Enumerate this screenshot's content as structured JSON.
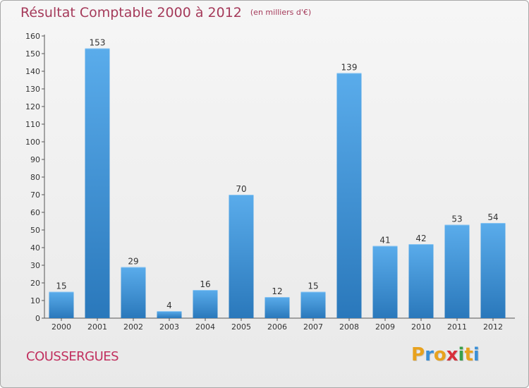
{
  "header": {
    "title": "Résultat Comptable 2000 à 2012",
    "unit": "(en milliers d'€)"
  },
  "footer": {
    "place": "COUSSERGUES",
    "logo_letters": [
      "P",
      "r",
      "o",
      "x",
      "i",
      "t",
      "i"
    ],
    "logo_colors": [
      "#e8a21e",
      "#3a8fd6",
      "#e8a21e",
      "#d8303a",
      "#3aa04a",
      "#e8a21e",
      "#3a8fd6"
    ]
  },
  "colors": {
    "title": "#a53a5a",
    "place": "#c1305f",
    "bar_top": "#5aaceb",
    "bar_bottom": "#2a78bb"
  },
  "chart_data": {
    "type": "bar",
    "categories": [
      "2000",
      "2001",
      "2002",
      "2003",
      "2004",
      "2005",
      "2006",
      "2007",
      "2008",
      "2009",
      "2010",
      "2011",
      "2012"
    ],
    "values": [
      15,
      153,
      29,
      4,
      16,
      70,
      12,
      15,
      139,
      41,
      42,
      53,
      54
    ],
    "ylim": [
      0,
      160
    ],
    "yticks": [
      0,
      10,
      20,
      30,
      40,
      50,
      60,
      70,
      80,
      90,
      100,
      110,
      120,
      130,
      140,
      150,
      160
    ],
    "grid": false
  }
}
